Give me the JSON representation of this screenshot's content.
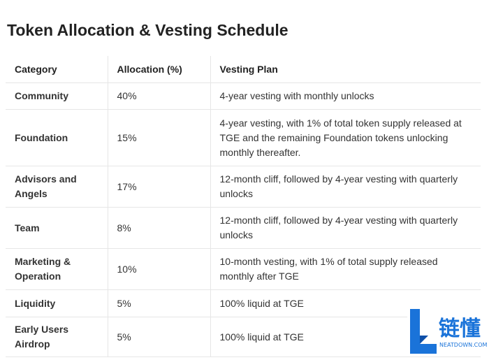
{
  "title": "Token Allocation & Vesting Schedule",
  "table": {
    "header": [
      "Category",
      "Allocation (%)",
      "Vesting Plan"
    ],
    "rows": [
      [
        "Community",
        "40%",
        "4-year vesting with monthly unlocks"
      ],
      [
        "Foundation",
        "15%",
        "4-year vesting, with 1% of total token supply released at TGE and the remaining Foundation tokens unlocking monthly thereafter."
      ],
      [
        "Advisors and Angels",
        "17%",
        "12-month cliff, followed by 4-year vesting with quarterly unlocks"
      ],
      [
        "Team",
        "8%",
        "12-month cliff, followed by 4-year vesting with quarterly unlocks"
      ],
      [
        "Marketing & Operation",
        "10%",
        "10-month vesting, with 1% of total supply released monthly after TGE"
      ],
      [
        "Liquidity",
        "5%",
        "100% liquid at TGE"
      ],
      [
        "Early Users Airdrop",
        "5%",
        "100% liquid at TGE"
      ]
    ]
  },
  "watermark": {
    "name": "链懂",
    "site": "NEATDOWN.COM"
  }
}
